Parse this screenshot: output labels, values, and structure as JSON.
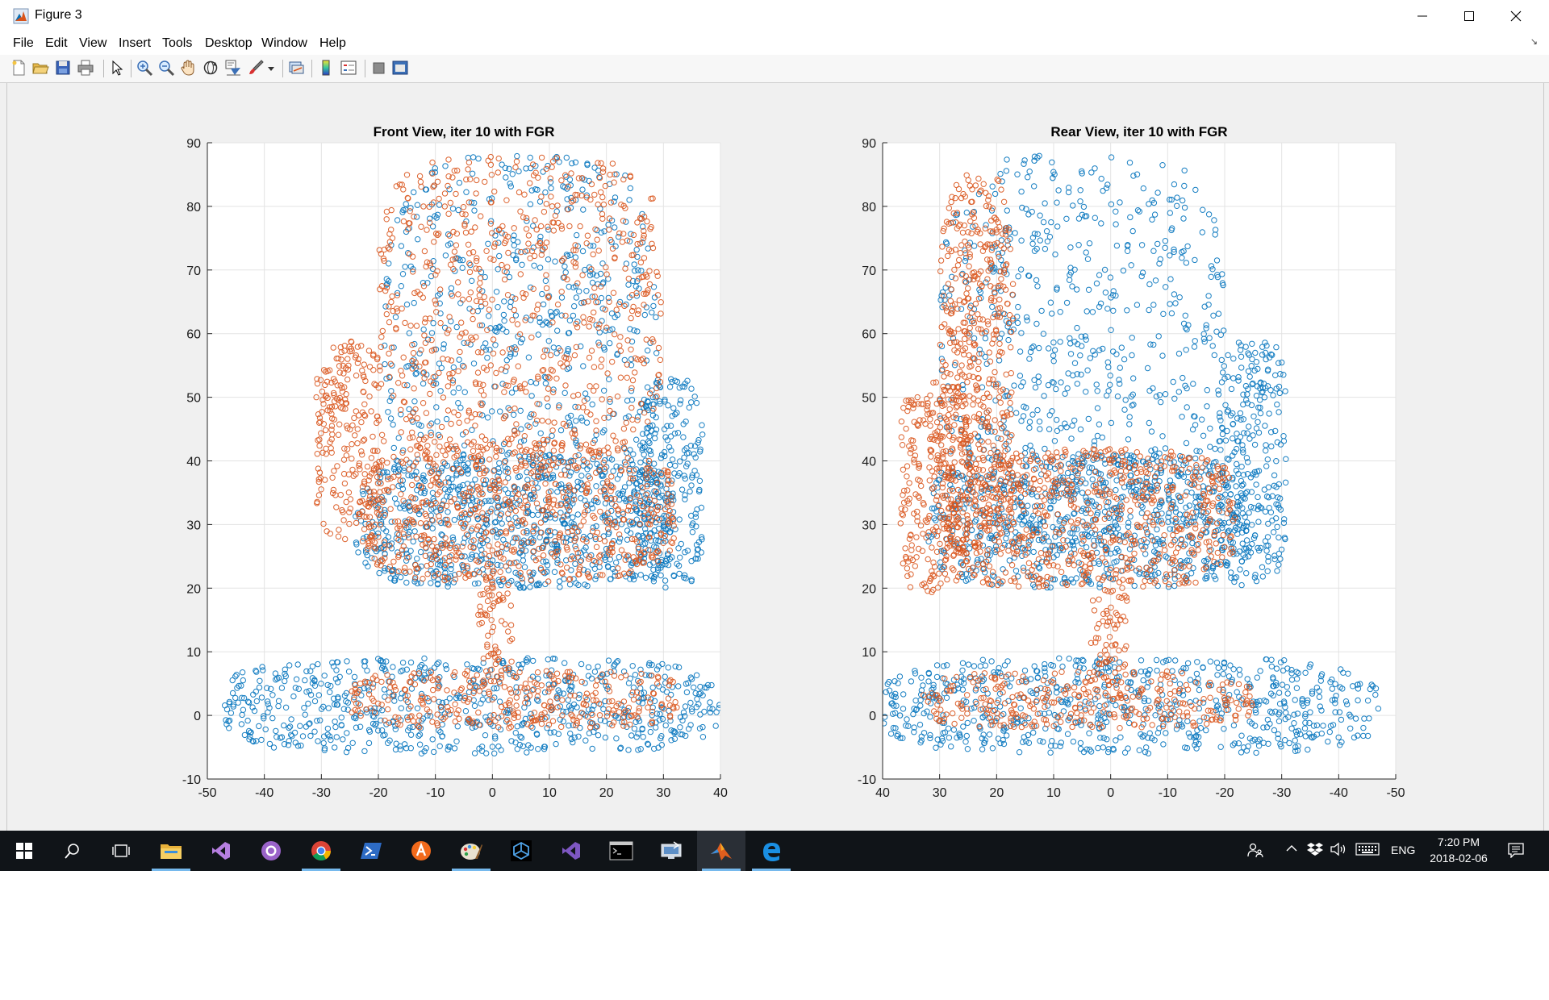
{
  "window": {
    "title": "Figure 3",
    "controls": [
      "minimize-icon",
      "maximize-icon",
      "close-icon"
    ]
  },
  "menu": [
    "File",
    "Edit",
    "View",
    "Insert",
    "Tools",
    "Desktop",
    "Window",
    "Help"
  ],
  "toolbar": {
    "icons": [
      "new-figure-icon",
      "open-file-icon",
      "save-icon",
      "print-icon",
      "select-arrow-icon",
      "zoom-in-icon",
      "zoom-out-icon",
      "pan-hand-icon",
      "rotate-3d-icon",
      "data-cursor-icon",
      "brush-icon",
      "brush-dropdown-icon",
      "link-plot-icon",
      "colorbar-icon",
      "legend-icon",
      "hide-plot-tools-icon",
      "show-plot-tools-icon"
    ]
  },
  "colors": {
    "series_a": "#0072bd",
    "series_b": "#d95319",
    "window_bg": "#f0f0f0",
    "taskbar_bg": "#101418",
    "taskbar_accent": "#76b9ed"
  },
  "chart_data": [
    {
      "type": "scatter",
      "title": "Front View, iter 10 with FGR",
      "xlim": [
        -50,
        40
      ],
      "ylim": [
        -10,
        90
      ],
      "xticks": [
        -50,
        -40,
        -30,
        -20,
        -10,
        0,
        10,
        20,
        30,
        40
      ],
      "yticks": [
        -10,
        0,
        10,
        20,
        30,
        40,
        50,
        60,
        70,
        80,
        90
      ],
      "grid": true,
      "legend": "none",
      "marker": "circle",
      "series": [
        {
          "color": "#0072bd",
          "regions": [
            {
              "part": "backrest",
              "x": [
                -19,
                29
              ],
              "y": [
                25,
                88
              ]
            },
            {
              "part": "right-armrest",
              "x": [
                25,
                37
              ],
              "y": [
                20,
                53
              ]
            },
            {
              "part": "seat",
              "x": [
                -24,
                32
              ],
              "y": [
                20,
                41
              ]
            },
            {
              "part": "base",
              "x": [
                -47,
                40
              ],
              "y": [
                -6,
                9
              ]
            }
          ]
        },
        {
          "color": "#d95319",
          "regions": [
            {
              "part": "backrest",
              "x": [
                -20,
                30
              ],
              "y": [
                40,
                88
              ]
            },
            {
              "part": "left-armrest",
              "x": [
                -31,
                -19
              ],
              "y": [
                27,
                59
              ]
            },
            {
              "part": "seat-cushion",
              "x": [
                -23,
                32
              ],
              "y": [
                21,
                43
              ]
            },
            {
              "part": "stem",
              "x": [
                -3,
                3.5
              ],
              "y": [
                5,
                22
              ]
            },
            {
              "part": "base-legs",
              "x": [
                -25,
                33
              ],
              "y": [
                -2,
                7
              ]
            }
          ]
        }
      ]
    },
    {
      "type": "scatter",
      "title": "Rear View, iter 10 with FGR",
      "xlim": [
        40,
        -50
      ],
      "ylim": [
        -10,
        90
      ],
      "xticks": [
        40,
        30,
        20,
        10,
        0,
        -10,
        -20,
        -30,
        -40,
        -50
      ],
      "yticks": [
        -10,
        0,
        10,
        20,
        30,
        40,
        50,
        60,
        70,
        80,
        90
      ],
      "grid": true,
      "legend": "none",
      "marker": "circle",
      "series": [
        {
          "color": "#0072bd",
          "regions": [
            {
              "part": "backrest",
              "x": [
                -20,
                30
              ],
              "y": [
                25,
                88
              ]
            },
            {
              "part": "left-armrest",
              "x": [
                -31,
                -19
              ],
              "y": [
                20,
                59
              ]
            },
            {
              "part": "seat",
              "x": [
                -24,
                32
              ],
              "y": [
                20,
                41
              ]
            },
            {
              "part": "base",
              "x": [
                -47,
                40
              ],
              "y": [
                -6,
                9
              ]
            }
          ]
        },
        {
          "color": "#d95319",
          "regions": [
            {
              "part": "backrest-edge",
              "x": [
                17,
                30
              ],
              "y": [
                25,
                85
              ]
            },
            {
              "part": "right-armrest",
              "x": [
                25,
                37
              ],
              "y": [
                19,
                53
              ]
            },
            {
              "part": "seat-body",
              "x": [
                -22,
                30
              ],
              "y": [
                20,
                42
              ]
            },
            {
              "part": "stem",
              "x": [
                -3,
                3.5
              ],
              "y": [
                5,
                22
              ]
            },
            {
              "part": "base-legs",
              "x": [
                -25,
                33
              ],
              "y": [
                -2,
                7
              ]
            }
          ]
        }
      ]
    }
  ],
  "taskbar": {
    "apps": [
      {
        "icon": "file-explorer-icon",
        "running": true
      },
      {
        "icon": "visual-studio-icon",
        "running": false
      },
      {
        "icon": "github-icon",
        "running": false
      },
      {
        "icon": "chrome-icon",
        "running": true
      },
      {
        "icon": "powershell-icon",
        "running": false
      },
      {
        "icon": "avast-icon",
        "running": false
      },
      {
        "icon": "paint-icon",
        "running": true
      },
      {
        "icon": "unity-icon",
        "running": false
      },
      {
        "icon": "visual-studio-2-icon",
        "running": false
      },
      {
        "icon": "command-prompt-icon",
        "running": false
      },
      {
        "icon": "remote-desktop-icon",
        "running": false
      },
      {
        "icon": "matlab-icon",
        "running": true
      },
      {
        "icon": "edge-icon",
        "running": true
      }
    ],
    "language": "ENG",
    "time": "7:20 PM",
    "date": "2018-02-06"
  }
}
